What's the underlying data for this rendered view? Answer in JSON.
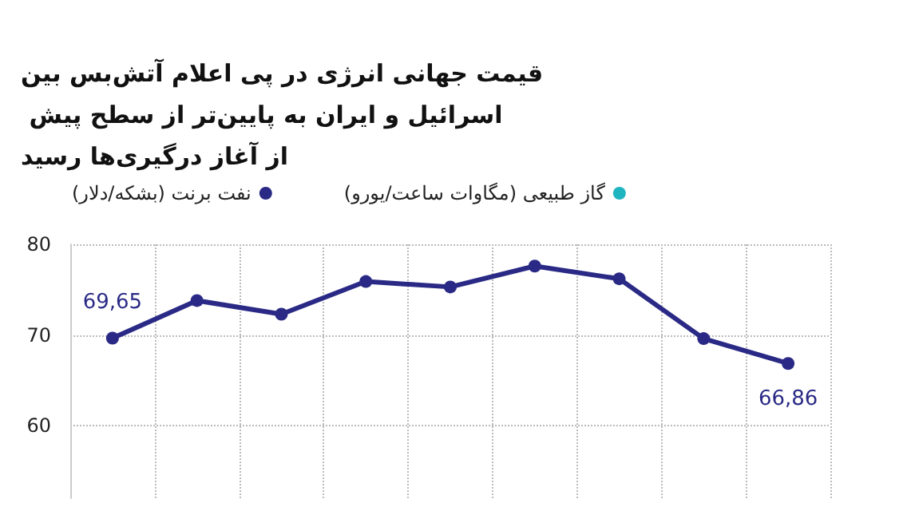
{
  "chart_data": {
    "type": "line",
    "title": "قیمت جهانی انرژی در پی اعلام آتش‌بس بین اسرائیل و ایران به پایین‌تر از سطح پیش از آغاز درگیری‌ها رسید",
    "categories": [
      null,
      null,
      null,
      null,
      null,
      null,
      null,
      null,
      null
    ],
    "series": [
      {
        "name": "نفت برنت (بشکه/دلار)",
        "color": "#2a2a86",
        "values": [
          69.65,
          73.8,
          72.3,
          75.9,
          75.3,
          77.6,
          76.2,
          69.6,
          66.86
        ],
        "value_labels": [
          "69,65",
          null,
          null,
          null,
          null,
          null,
          null,
          null,
          "66,86"
        ]
      },
      {
        "name": "گاز طبیعی (مگاوات ساعت/یورو)",
        "color": "#1fb5c0",
        "values": [
          null,
          null,
          null,
          null,
          null,
          null,
          null,
          null,
          null
        ]
      }
    ],
    "ylim": [
      52,
      80
    ],
    "yticks": [
      60,
      70,
      80
    ],
    "grid": true,
    "legend": "top left",
    "marker": "circle",
    "line_style": "solid"
  }
}
